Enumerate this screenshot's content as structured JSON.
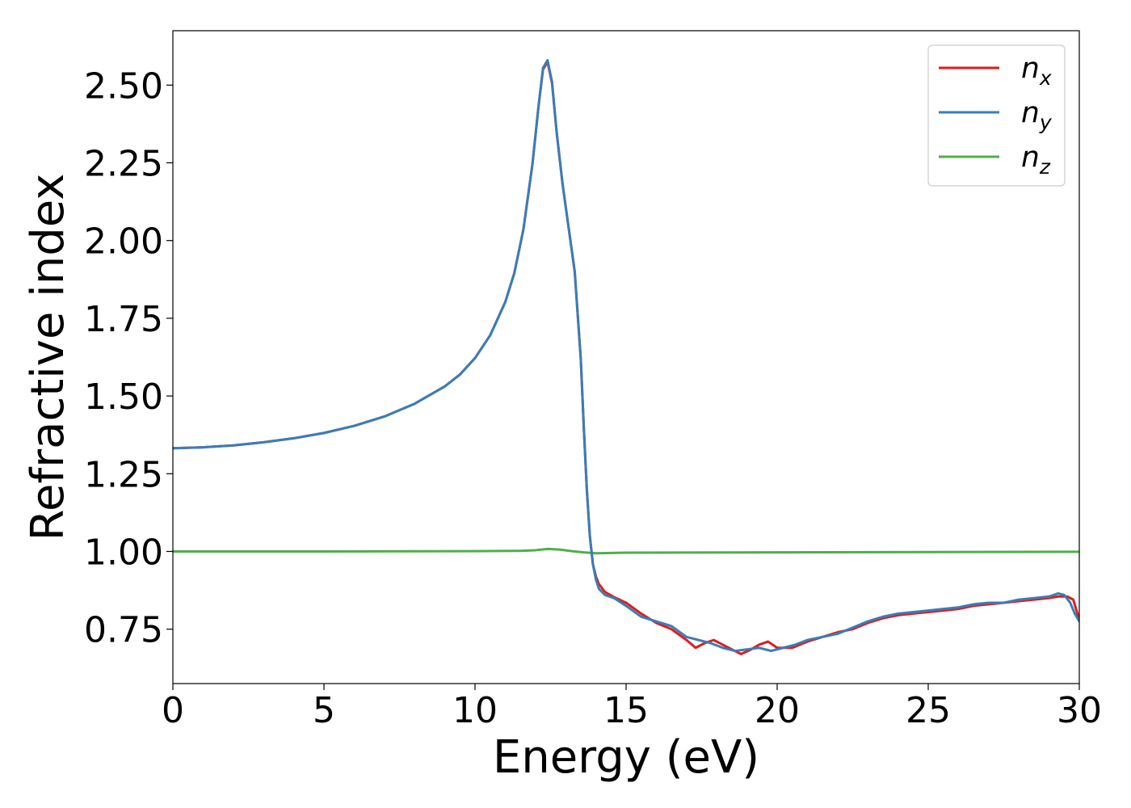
{
  "chart_data": {
    "type": "line",
    "xlabel": "Energy (eV)",
    "ylabel": "Refractive index",
    "xlim": [
      0,
      30
    ],
    "ylim": [
      0.575,
      2.675
    ],
    "xticks": [
      0,
      5,
      10,
      15,
      20,
      25,
      30
    ],
    "xtick_labels": [
      "0",
      "5",
      "10",
      "15",
      "20",
      "25",
      "30"
    ],
    "yticks": [
      0.75,
      1.0,
      1.25,
      1.5,
      1.75,
      2.0,
      2.25,
      2.5
    ],
    "ytick_labels": [
      "0.75",
      "1.00",
      "1.25",
      "1.50",
      "1.75",
      "2.00",
      "2.25",
      "2.50"
    ],
    "grid": false,
    "legend_position": "top-right",
    "series": [
      {
        "name": "n_x",
        "legend_main": "n",
        "legend_sub": "x",
        "color": "#e41a1c",
        "x": [
          0,
          1,
          2,
          3,
          4,
          5,
          6,
          7,
          8,
          9,
          9.5,
          10,
          10.5,
          11,
          11.3,
          11.6,
          11.9,
          12.1,
          12.25,
          12.4,
          12.55,
          12.7,
          12.9,
          13.1,
          13.3,
          13.5,
          13.6,
          13.7,
          13.8,
          13.9,
          14.0,
          14.1,
          14.3,
          14.6,
          15.0,
          15.5,
          16.0,
          16.5,
          17.0,
          17.3,
          17.6,
          17.9,
          18.2,
          18.5,
          18.8,
          19.1,
          19.4,
          19.7,
          20.0,
          20.5,
          21.0,
          21.5,
          22.0,
          22.5,
          23.0,
          23.5,
          24.0,
          24.5,
          25.0,
          25.5,
          26.0,
          26.5,
          27.0,
          27.5,
          28.0,
          28.5,
          29.0,
          29.3,
          29.6,
          29.8,
          30.0
        ],
        "y": [
          1.332,
          1.335,
          1.341,
          1.351,
          1.364,
          1.381,
          1.404,
          1.434,
          1.475,
          1.531,
          1.569,
          1.622,
          1.695,
          1.802,
          1.895,
          2.035,
          2.245,
          2.43,
          2.55,
          2.575,
          2.505,
          2.35,
          2.18,
          2.04,
          1.9,
          1.62,
          1.4,
          1.2,
          1.05,
          0.96,
          0.92,
          0.895,
          0.87,
          0.853,
          0.835,
          0.8,
          0.77,
          0.75,
          0.715,
          0.69,
          0.705,
          0.715,
          0.7,
          0.685,
          0.67,
          0.683,
          0.7,
          0.71,
          0.69,
          0.69,
          0.71,
          0.725,
          0.74,
          0.75,
          0.77,
          0.785,
          0.795,
          0.8,
          0.805,
          0.81,
          0.815,
          0.825,
          0.83,
          0.835,
          0.84,
          0.845,
          0.85,
          0.855,
          0.855,
          0.845,
          0.78
        ]
      },
      {
        "name": "n_y",
        "legend_main": "n",
        "legend_sub": "y",
        "color": "#377eb8",
        "x": [
          0,
          1,
          2,
          3,
          4,
          5,
          6,
          7,
          8,
          9,
          9.5,
          10,
          10.5,
          11,
          11.3,
          11.6,
          11.9,
          12.1,
          12.25,
          12.4,
          12.55,
          12.7,
          12.9,
          13.1,
          13.3,
          13.5,
          13.6,
          13.7,
          13.8,
          13.9,
          14.0,
          14.1,
          14.3,
          14.6,
          15.0,
          15.5,
          16.0,
          16.5,
          17.0,
          17.4,
          17.8,
          18.2,
          18.6,
          19.0,
          19.4,
          19.8,
          20.2,
          20.6,
          21.0,
          21.5,
          22.0,
          22.5,
          23.0,
          23.5,
          24.0,
          24.5,
          25.0,
          25.5,
          26.0,
          26.5,
          27.0,
          27.5,
          28.0,
          28.5,
          29.0,
          29.3,
          29.5,
          29.7,
          29.85,
          30.0
        ],
        "y": [
          1.332,
          1.335,
          1.341,
          1.351,
          1.364,
          1.381,
          1.404,
          1.434,
          1.475,
          1.531,
          1.569,
          1.622,
          1.695,
          1.802,
          1.895,
          2.035,
          2.245,
          2.43,
          2.555,
          2.58,
          2.51,
          2.35,
          2.18,
          2.04,
          1.9,
          1.62,
          1.4,
          1.2,
          1.05,
          0.96,
          0.91,
          0.88,
          0.86,
          0.85,
          0.825,
          0.79,
          0.775,
          0.76,
          0.725,
          0.715,
          0.705,
          0.69,
          0.68,
          0.685,
          0.69,
          0.68,
          0.69,
          0.7,
          0.715,
          0.725,
          0.735,
          0.755,
          0.775,
          0.79,
          0.8,
          0.805,
          0.81,
          0.815,
          0.82,
          0.83,
          0.835,
          0.835,
          0.845,
          0.85,
          0.855,
          0.865,
          0.86,
          0.835,
          0.8,
          0.775
        ]
      },
      {
        "name": "n_z",
        "legend_main": "n",
        "legend_sub": "z",
        "color": "#4daf4a",
        "x": [
          0,
          5,
          10,
          11.5,
          12.0,
          12.4,
          12.8,
          13.2,
          13.6,
          14.0,
          14.5,
          15,
          20,
          25,
          30
        ],
        "y": [
          1.0,
          1.0,
          1.001,
          1.002,
          1.004,
          1.008,
          1.006,
          1.001,
          0.997,
          0.994,
          0.995,
          0.996,
          0.997,
          0.998,
          0.999
        ]
      }
    ]
  }
}
